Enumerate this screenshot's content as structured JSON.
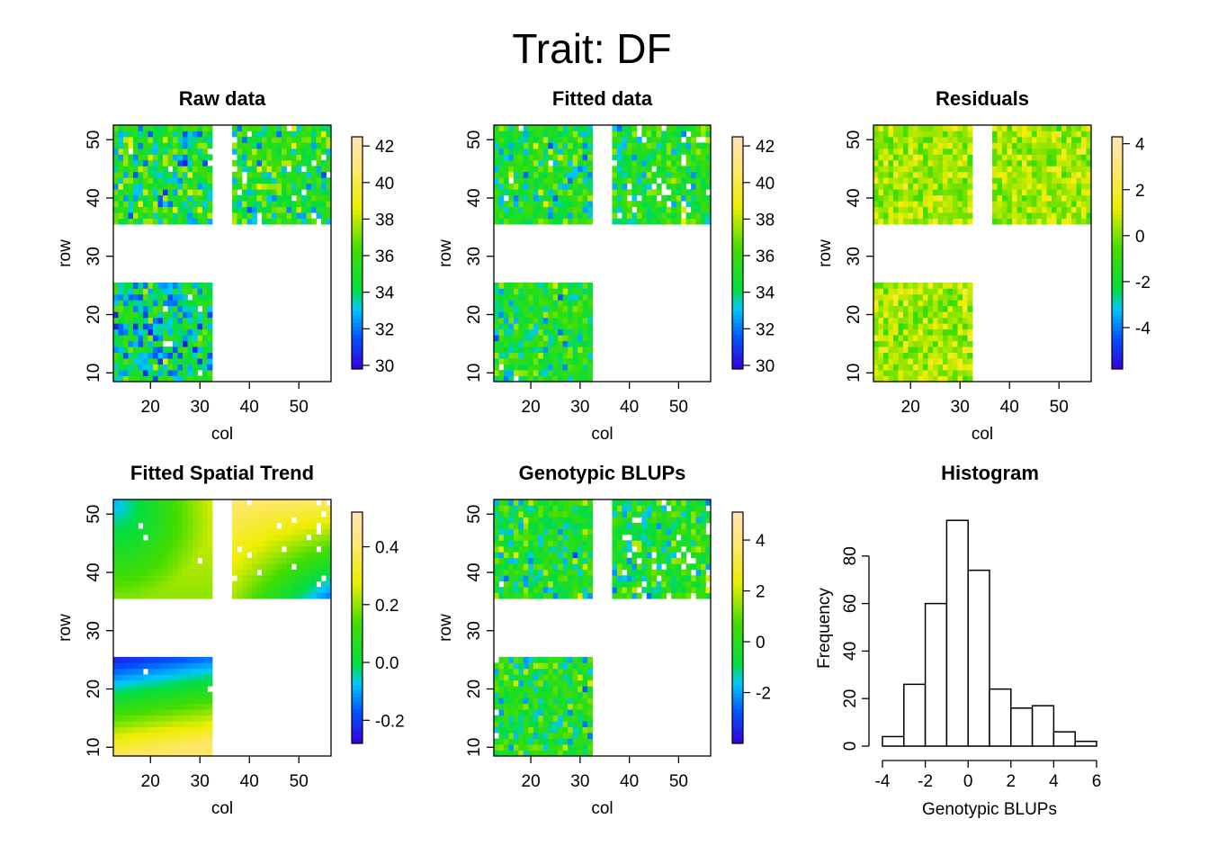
{
  "figure": {
    "title": "Trait: DF"
  },
  "chart_data": [
    {
      "type": "heatmap",
      "title": "Raw data",
      "xlabel": "col",
      "ylabel": "row",
      "xticks": [
        20,
        30,
        40,
        50
      ],
      "yticks": [
        10,
        20,
        30,
        40,
        50
      ],
      "xlim": [
        12.5,
        56.5
      ],
      "ylim": [
        8.5,
        52.5
      ],
      "blocks": [
        {
          "cols": [
            12.5,
            32.5
          ],
          "rows": [
            35.5,
            52.5
          ]
        },
        {
          "cols": [
            36.5,
            56.5
          ],
          "rows": [
            35.5,
            52.5
          ]
        },
        {
          "cols": [
            12.5,
            32.5
          ],
          "rows": [
            8.5,
            25.5
          ]
        }
      ],
      "value_pattern": "per-plot random variation, mostly green with scattered blue and yellow cells; lower-left block more blue",
      "colorbar": {
        "min": 29.8,
        "max": 42.5,
        "ticks": [
          30,
          32,
          34,
          36,
          38,
          40,
          42
        ]
      }
    },
    {
      "type": "heatmap",
      "title": "Fitted data",
      "xlabel": "col",
      "ylabel": "row",
      "xticks": [
        20,
        30,
        40,
        50
      ],
      "yticks": [
        10,
        20,
        30,
        40,
        50
      ],
      "xlim": [
        12.5,
        56.5
      ],
      "ylim": [
        8.5,
        52.5
      ],
      "blocks": [
        {
          "cols": [
            12.5,
            32.5
          ],
          "rows": [
            35.5,
            52.5
          ]
        },
        {
          "cols": [
            36.5,
            56.5
          ],
          "rows": [
            35.5,
            52.5
          ]
        },
        {
          "cols": [
            12.5,
            32.5
          ],
          "rows": [
            8.5,
            25.5
          ]
        }
      ],
      "value_pattern": "per-plot random variation, mostly green with scattered blue and yellow cells",
      "colorbar": {
        "min": 29.8,
        "max": 42.5,
        "ticks": [
          30,
          32,
          34,
          36,
          38,
          40,
          42
        ]
      }
    },
    {
      "type": "heatmap",
      "title": "Residuals",
      "xlabel": "col",
      "ylabel": "row",
      "xticks": [
        20,
        30,
        40,
        50
      ],
      "yticks": [
        10,
        20,
        30,
        40,
        50
      ],
      "xlim": [
        12.5,
        56.5
      ],
      "ylim": [
        8.5,
        52.5
      ],
      "blocks": [
        {
          "cols": [
            12.5,
            32.5
          ],
          "rows": [
            35.5,
            52.5
          ]
        },
        {
          "cols": [
            36.5,
            56.5
          ],
          "rows": [
            35.5,
            52.5
          ]
        },
        {
          "cols": [
            12.5,
            32.5
          ],
          "rows": [
            8.5,
            25.5
          ]
        }
      ],
      "value_pattern": "values near zero, yellow-green with scattered green cells",
      "colorbar": {
        "min": -5.8,
        "max": 4.3,
        "ticks": [
          -4,
          -2,
          0,
          2,
          4
        ]
      }
    },
    {
      "type": "heatmap",
      "title": "Fitted Spatial Trend",
      "xlabel": "col",
      "ylabel": "row",
      "xticks": [
        20,
        30,
        40,
        50
      ],
      "yticks": [
        10,
        20,
        30,
        40,
        50
      ],
      "xlim": [
        12.5,
        56.5
      ],
      "ylim": [
        8.5,
        52.5
      ],
      "blocks": [
        {
          "cols": [
            12.5,
            32.5
          ],
          "rows": [
            35.5,
            52.5
          ]
        },
        {
          "cols": [
            36.5,
            56.5
          ],
          "rows": [
            35.5,
            52.5
          ]
        },
        {
          "cols": [
            12.5,
            32.5
          ],
          "rows": [
            8.5,
            25.5
          ]
        }
      ],
      "value_pattern": "smooth surface: blue at top-left and bottom-right corners, yellow-orange at upper right, green-yellow in middle rows",
      "colorbar": {
        "min": -0.28,
        "max": 0.52,
        "ticks": [
          -0.2,
          0.0,
          0.2,
          0.4
        ],
        "tick_labels": [
          "-0.2",
          "0.0",
          "0.2",
          "0.4"
        ]
      }
    },
    {
      "type": "heatmap",
      "title": "Genotypic BLUPs",
      "xlabel": "col",
      "ylabel": "row",
      "xticks": [
        20,
        30,
        40,
        50
      ],
      "yticks": [
        10,
        20,
        30,
        40,
        50
      ],
      "xlim": [
        12.5,
        56.5
      ],
      "ylim": [
        8.5,
        52.5
      ],
      "blocks": [
        {
          "cols": [
            12.5,
            32.5
          ],
          "rows": [
            35.5,
            52.5
          ]
        },
        {
          "cols": [
            36.5,
            56.5
          ],
          "rows": [
            35.5,
            52.5
          ]
        },
        {
          "cols": [
            12.5,
            32.5
          ],
          "rows": [
            8.5,
            25.5
          ]
        }
      ],
      "value_pattern": "per-plot random variation, green with scattered blue and yellow cells",
      "colorbar": {
        "min": -4,
        "max": 5.1,
        "ticks": [
          -2,
          0,
          2,
          4
        ]
      }
    },
    {
      "type": "bar",
      "subtype": "histogram",
      "title": "Histogram",
      "xlabel": "Genotypic BLUPs",
      "ylabel": "Frequency",
      "bin_edges": [
        -4,
        -3,
        -2,
        -1,
        0,
        1,
        2,
        3,
        4,
        5,
        6
      ],
      "values": [
        4,
        26,
        60,
        95,
        74,
        24,
        16,
        17,
        6,
        2
      ],
      "xticks": [
        -4,
        -2,
        0,
        2,
        4,
        6
      ],
      "yticks": [
        0,
        20,
        40,
        60,
        80
      ],
      "xlim": [
        -4,
        6
      ],
      "ylim": [
        0,
        100
      ]
    }
  ]
}
